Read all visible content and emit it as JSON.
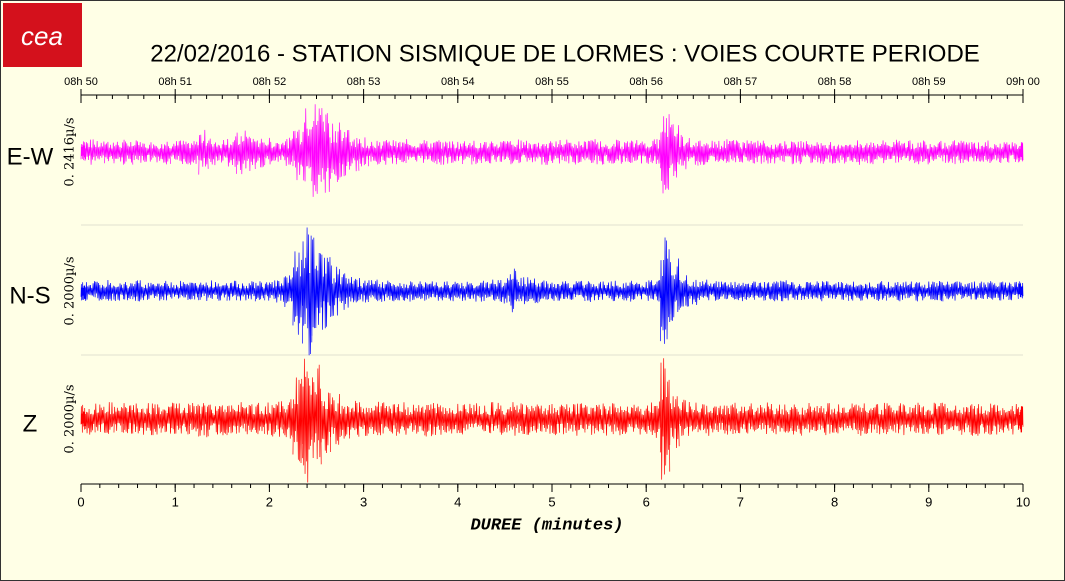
{
  "logo": {
    "text": "cea"
  },
  "chart_data": {
    "type": "seismogram",
    "title": "22/02/2016  -  STATION SISMIQUE DE LORMES : VOIES COURTE PERIODE",
    "x_label": "DUREE (minutes)",
    "xlim": [
      0,
      10
    ],
    "xticks": [
      0,
      1,
      2,
      3,
      4,
      5,
      6,
      7,
      8,
      9,
      10
    ],
    "x2ticks": [
      {
        "value": 0,
        "label": "08h 50"
      },
      {
        "value": 1,
        "label": "08h 51"
      },
      {
        "value": 2,
        "label": "08h 52"
      },
      {
        "value": 3,
        "label": "08h 53"
      },
      {
        "value": 4,
        "label": "08h 54"
      },
      {
        "value": 5,
        "label": "08h 55"
      },
      {
        "value": 6,
        "label": "08h 56"
      },
      {
        "value": 7,
        "label": "08h 57"
      },
      {
        "value": 8,
        "label": "08h 58"
      },
      {
        "value": 9,
        "label": "08h 59"
      },
      {
        "value": 10,
        "label": "09h 00"
      }
    ],
    "x": [
      0,
      0.1,
      0.2,
      0.3,
      0.4,
      0.5,
      0.6,
      0.7,
      0.8,
      0.9,
      1,
      1.1,
      1.2,
      1.3,
      1.4,
      1.5,
      1.6,
      1.7,
      1.8,
      1.9,
      2,
      2.1,
      2.2,
      2.3,
      2.4,
      2.5,
      2.6,
      2.7,
      2.8,
      2.9,
      3,
      3.1,
      3.2,
      3.3,
      3.4,
      3.5,
      3.6,
      3.7,
      3.8,
      3.9,
      4,
      4.1,
      4.2,
      4.3,
      4.4,
      4.5,
      4.6,
      4.7,
      4.8,
      4.9,
      5,
      5.1,
      5.2,
      5.3,
      5.4,
      5.5,
      5.6,
      5.7,
      5.8,
      5.9,
      6,
      6.1,
      6.2,
      6.3,
      6.4,
      6.5,
      6.6,
      6.7,
      6.8,
      6.9,
      7,
      7.1,
      7.2,
      7.3,
      7.4,
      7.5,
      7.6,
      7.7,
      7.8,
      7.9,
      8,
      8.1,
      8.2,
      8.3,
      8.4,
      8.5,
      8.6,
      8.7,
      8.8,
      8.9,
      9,
      9.1,
      9.2,
      9.3,
      9.4,
      9.5,
      9.6,
      9.7,
      9.8,
      9.9,
      10
    ],
    "series": [
      {
        "name": "E-W",
        "scale_label": "0. 2416µ/s",
        "color": "#ff00ff",
        "ylim": [
          -1,
          1
        ],
        "values": [
          0.18,
          0.2,
          0.17,
          0.19,
          0.18,
          0.2,
          0.18,
          0.17,
          0.19,
          0.2,
          0.18,
          0.19,
          0.2,
          0.35,
          0.22,
          0.2,
          0.25,
          0.35,
          0.3,
          0.25,
          0.22,
          0.2,
          0.22,
          0.45,
          0.7,
          0.8,
          0.75,
          0.55,
          0.4,
          0.3,
          0.25,
          0.22,
          0.2,
          0.19,
          0.18,
          0.2,
          0.19,
          0.18,
          0.2,
          0.19,
          0.18,
          0.2,
          0.19,
          0.18,
          0.17,
          0.19,
          0.2,
          0.18,
          0.19,
          0.2,
          0.18,
          0.19,
          0.2,
          0.18,
          0.19,
          0.2,
          0.18,
          0.19,
          0.18,
          0.2,
          0.19,
          0.2,
          0.7,
          0.45,
          0.3,
          0.22,
          0.2,
          0.19,
          0.18,
          0.2,
          0.19,
          0.18,
          0.2,
          0.19,
          0.18,
          0.17,
          0.19,
          0.18,
          0.2,
          0.19,
          0.18,
          0.19,
          0.18,
          0.2,
          0.19,
          0.18,
          0.17,
          0.19,
          0.18,
          0.2,
          0.19,
          0.18,
          0.17,
          0.19,
          0.18,
          0.17,
          0.18,
          0.17,
          0.18,
          0.17,
          0.16
        ]
      },
      {
        "name": "N-S",
        "scale_label": "0. 2000µ/s",
        "color": "#0000ff",
        "ylim": [
          -1,
          1
        ],
        "values": [
          0.15,
          0.16,
          0.15,
          0.17,
          0.16,
          0.15,
          0.17,
          0.16,
          0.15,
          0.16,
          0.15,
          0.16,
          0.15,
          0.16,
          0.17,
          0.15,
          0.16,
          0.15,
          0.17,
          0.16,
          0.17,
          0.18,
          0.25,
          0.7,
          1.0,
          0.9,
          0.6,
          0.4,
          0.3,
          0.22,
          0.2,
          0.18,
          0.17,
          0.16,
          0.15,
          0.17,
          0.16,
          0.15,
          0.16,
          0.15,
          0.16,
          0.15,
          0.17,
          0.16,
          0.18,
          0.2,
          0.35,
          0.22,
          0.2,
          0.18,
          0.17,
          0.16,
          0.15,
          0.16,
          0.17,
          0.16,
          0.15,
          0.16,
          0.17,
          0.16,
          0.17,
          0.18,
          0.9,
          0.5,
          0.3,
          0.22,
          0.18,
          0.17,
          0.16,
          0.15,
          0.16,
          0.15,
          0.16,
          0.15,
          0.16,
          0.17,
          0.15,
          0.16,
          0.15,
          0.16,
          0.15,
          0.16,
          0.15,
          0.16,
          0.15,
          0.16,
          0.15,
          0.16,
          0.15,
          0.16,
          0.15,
          0.16,
          0.15,
          0.16,
          0.15,
          0.16,
          0.15,
          0.16,
          0.15,
          0.16,
          0.15
        ]
      },
      {
        "name": "Z",
        "scale_label": "0. 2000µ/s",
        "color": "#ff0000",
        "ylim": [
          -1,
          1
        ],
        "values": [
          0.22,
          0.25,
          0.24,
          0.26,
          0.23,
          0.25,
          0.24,
          0.26,
          0.25,
          0.24,
          0.25,
          0.24,
          0.26,
          0.28,
          0.25,
          0.27,
          0.3,
          0.28,
          0.26,
          0.25,
          0.27,
          0.28,
          0.32,
          0.7,
          1.0,
          0.85,
          0.55,
          0.4,
          0.32,
          0.28,
          0.26,
          0.25,
          0.27,
          0.25,
          0.26,
          0.24,
          0.25,
          0.27,
          0.26,
          0.25,
          0.24,
          0.26,
          0.25,
          0.24,
          0.26,
          0.25,
          0.27,
          0.26,
          0.25,
          0.24,
          0.26,
          0.25,
          0.24,
          0.26,
          0.25,
          0.24,
          0.26,
          0.25,
          0.27,
          0.26,
          0.25,
          0.3,
          0.95,
          0.45,
          0.3,
          0.27,
          0.25,
          0.26,
          0.24,
          0.25,
          0.26,
          0.25,
          0.24,
          0.26,
          0.25,
          0.24,
          0.25,
          0.26,
          0.24,
          0.25,
          0.26,
          0.24,
          0.25,
          0.26,
          0.24,
          0.25,
          0.26,
          0.25,
          0.24,
          0.25,
          0.24,
          0.26,
          0.25,
          0.24,
          0.25,
          0.26,
          0.24,
          0.25,
          0.23,
          0.24,
          0.22
        ]
      }
    ]
  }
}
